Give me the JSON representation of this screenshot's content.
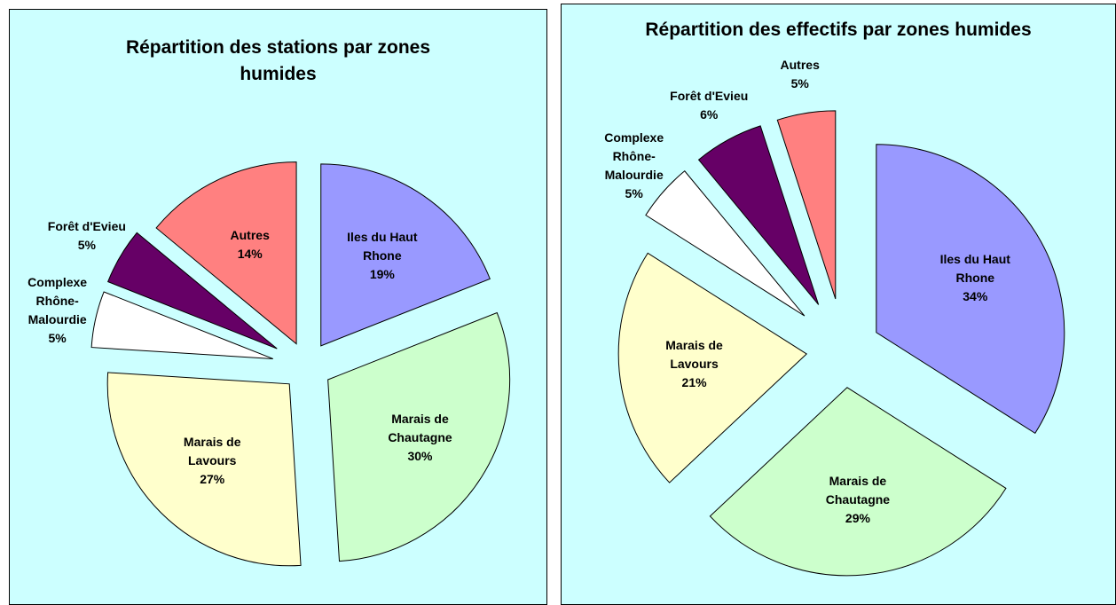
{
  "chart_data": [
    {
      "type": "pie",
      "title": "Répartition des stations par zones humides",
      "categories": [
        "Iles du Haut Rhone",
        "Marais de Chautagne",
        "Marais de Lavours",
        "Complexe Rhône-Malourdie",
        "Forêt d'Evieu",
        "Autres"
      ],
      "values": [
        19,
        30,
        27,
        5,
        5,
        14
      ],
      "value_labels": [
        "19%",
        "30%",
        "27%",
        "5%",
        "5%",
        "14%"
      ],
      "colors": [
        "#9999ff",
        "#ccffcc",
        "#ffffcc",
        "#ffffff",
        "#660066",
        "#ff8080"
      ]
    },
    {
      "type": "pie",
      "title": "Répartition des effectifs par zones humides",
      "categories": [
        "Iles du Haut Rhone",
        "Marais de Chautagne",
        "Marais de Lavours",
        "Complexe Rhône-Malourdie",
        "Forêt d'Evieu",
        "Autres"
      ],
      "values": [
        34,
        29,
        21,
        5,
        6,
        5
      ],
      "value_labels": [
        "34%",
        "29%",
        "21%",
        "5%",
        "6%",
        "5%"
      ],
      "colors": [
        "#9999ff",
        "#ccffcc",
        "#ffffcc",
        "#ffffff",
        "#660066",
        "#ff8080"
      ]
    }
  ]
}
